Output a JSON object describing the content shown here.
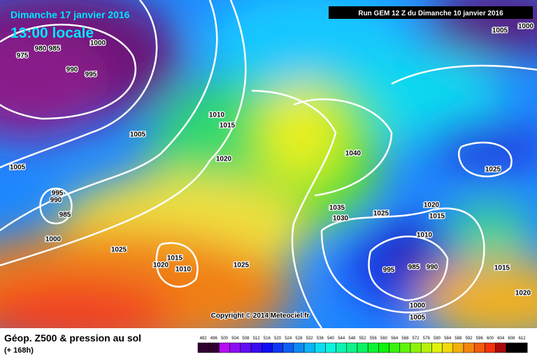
{
  "header": {
    "date": "Dimanche 17 janvier 2016",
    "time": "13:00 locale",
    "run": "Run GEM 12 Z du Dimanche 10 janvier 2016"
  },
  "isobar_labels": [
    "975",
    "980",
    "985",
    "990",
    "995",
    "1000",
    "1005",
    "1005",
    "995",
    "990",
    "985",
    "1000",
    "1010",
    "1015",
    "1020",
    "1025",
    "1015",
    "1020",
    "1010",
    "1025",
    "1040",
    "1035",
    "1030",
    "1025",
    "1020",
    "1015",
    "1010",
    "995",
    "985",
    "990",
    "1000",
    "1005",
    "1025",
    "1015",
    "1020",
    "1005",
    "1000"
  ],
  "copyright": "Copyright © 2014 Meteociel.fr",
  "footer": {
    "title": "Géop. Z500 & pression au sol",
    "subtitle": "(+ 168h)"
  },
  "colorbar": {
    "labels": [
      "492",
      "496",
      "500",
      "504",
      "508",
      "512",
      "516",
      "520",
      "524",
      "528",
      "532",
      "536",
      "540",
      "544",
      "548",
      "552",
      "556",
      "560",
      "564",
      "568",
      "572",
      "576",
      "580",
      "584",
      "588",
      "592",
      "596",
      "600",
      "604",
      "608",
      "612"
    ]
  }
}
